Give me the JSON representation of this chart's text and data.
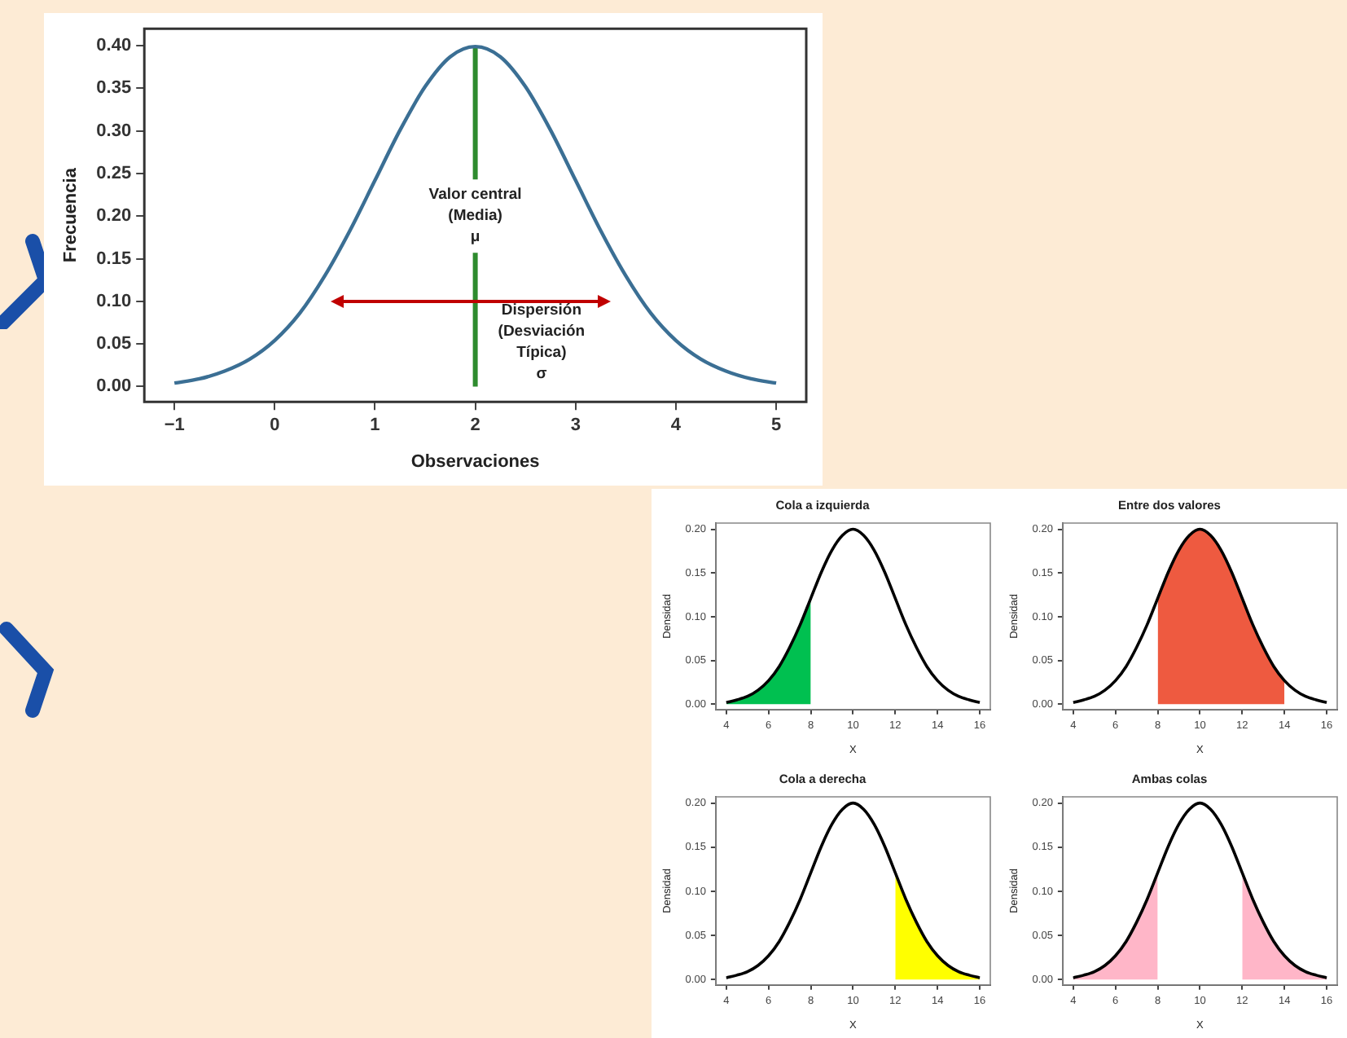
{
  "chart_data": [
    {
      "type": "line",
      "xlabel": "Observaciones",
      "ylabel": "Frecuencia",
      "xlim": [
        -1.3,
        5.3
      ],
      "ylim": [
        -0.018,
        0.42
      ],
      "xticks": [
        {
          "value": -1,
          "label": "−1"
        },
        0,
        1,
        2,
        3,
        4,
        5
      ],
      "yticks": [
        {
          "value": 0,
          "label": "0.00"
        },
        {
          "value": 0.05,
          "label": "0.05"
        },
        {
          "value": 0.1,
          "label": "0.10"
        },
        {
          "value": 0.15,
          "label": "0.15"
        },
        {
          "value": 0.2,
          "label": "0.20"
        },
        {
          "value": 0.25,
          "label": "0.25"
        },
        {
          "value": 0.3,
          "label": "0.30"
        },
        {
          "value": 0.35,
          "label": "0.35"
        },
        {
          "value": 0.4,
          "label": "0.40"
        }
      ],
      "grid": false,
      "legend": false,
      "marker": "none",
      "series": [
        {
          "type": "line",
          "color": "#3b6f94",
          "x": [
            -1,
            -0.75,
            -0.5,
            -0.25,
            0,
            0.25,
            0.5,
            0.75,
            1,
            1.25,
            1.5,
            1.75,
            2,
            2.25,
            2.5,
            2.75,
            3,
            3.25,
            3.5,
            3.75,
            4,
            4.25,
            4.5,
            4.75,
            5
          ],
          "values": [
            0.004,
            0.009,
            0.018,
            0.032,
            0.054,
            0.086,
            0.13,
            0.183,
            0.242,
            0.301,
            0.352,
            0.387,
            0.399,
            0.387,
            0.352,
            0.301,
            0.242,
            0.183,
            0.13,
            0.086,
            0.054,
            0.032,
            0.018,
            0.009,
            0.004
          ]
        }
      ],
      "ref_lines": [
        {
          "axis": "x",
          "value": 2,
          "color": "#2e8b2e"
        }
      ],
      "annotations": [
        {
          "text": "Valor central\n(Media)\nμ",
          "x": 2,
          "y": 0.2
        },
        "Dispersión\n(Desviación\nTípica)\nσ"
      ]
    },
    {
      "type": "line",
      "title": "Cola a izquierda",
      "xlabel": "X",
      "ylabel": "Densidad",
      "xlim": [
        3.5,
        16.5
      ],
      "ylim": [
        -0.006,
        0.207
      ],
      "xticks": [
        4,
        6,
        8,
        10,
        12,
        14,
        16
      ],
      "yticks": [
        {
          "value": 0,
          "label": "0.00"
        },
        {
          "value": 0.05,
          "label": "0.05"
        },
        {
          "value": 0.1,
          "label": "0.10"
        },
        {
          "value": 0.15,
          "label": "0.15"
        },
        {
          "value": 0.2,
          "label": "0.20"
        }
      ],
      "grid": false,
      "legend": false,
      "marker": "none",
      "series": [
        {
          "type": "area",
          "color": "#00c050",
          "x": [
            4,
            4.5,
            5,
            5.5,
            6,
            6.5,
            7,
            7.5,
            8
          ],
          "values": [
            0.002,
            0.005,
            0.009,
            0.016,
            0.027,
            0.043,
            0.065,
            0.091,
            0.121
          ]
        },
        {
          "type": "line",
          "color": "#000000",
          "x": [
            4,
            4.5,
            5,
            5.5,
            6,
            6.5,
            7,
            7.5,
            8,
            8.5,
            9,
            9.5,
            10,
            10.5,
            11,
            11.5,
            12,
            12.5,
            13,
            13.5,
            14,
            14.5,
            15,
            15.5,
            16
          ],
          "values": [
            0.002,
            0.005,
            0.009,
            0.016,
            0.027,
            0.043,
            0.065,
            0.091,
            0.121,
            0.151,
            0.176,
            0.193,
            0.2,
            0.193,
            0.176,
            0.151,
            0.121,
            0.091,
            0.065,
            0.043,
            0.027,
            0.016,
            0.009,
            0.005,
            0.002
          ]
        }
      ]
    },
    {
      "type": "line",
      "title": "Entre dos valores",
      "xlabel": "X",
      "ylabel": "Densidad",
      "xlim": [
        3.5,
        16.5
      ],
      "ylim": [
        -0.006,
        0.207
      ],
      "xticks": [
        4,
        6,
        8,
        10,
        12,
        14,
        16
      ],
      "yticks": [
        {
          "value": 0,
          "label": "0.00"
        },
        {
          "value": 0.05,
          "label": "0.05"
        },
        {
          "value": 0.1,
          "label": "0.10"
        },
        {
          "value": 0.15,
          "label": "0.15"
        },
        {
          "value": 0.2,
          "label": "0.20"
        }
      ],
      "grid": false,
      "legend": false,
      "marker": "none",
      "series": [
        {
          "type": "area",
          "color": "#ee5a40",
          "x": [
            8,
            8.5,
            9,
            9.5,
            10,
            10.5,
            11,
            11.5,
            12,
            12.5,
            13,
            13.5,
            14
          ],
          "values": [
            0.121,
            0.151,
            0.176,
            0.193,
            0.2,
            0.193,
            0.176,
            0.151,
            0.121,
            0.091,
            0.065,
            0.043,
            0.027
          ]
        },
        {
          "type": "line",
          "color": "#000000",
          "x": [
            4,
            4.5,
            5,
            5.5,
            6,
            6.5,
            7,
            7.5,
            8,
            8.5,
            9,
            9.5,
            10,
            10.5,
            11,
            11.5,
            12,
            12.5,
            13,
            13.5,
            14,
            14.5,
            15,
            15.5,
            16
          ],
          "values": [
            0.002,
            0.005,
            0.009,
            0.016,
            0.027,
            0.043,
            0.065,
            0.091,
            0.121,
            0.151,
            0.176,
            0.193,
            0.2,
            0.193,
            0.176,
            0.151,
            0.121,
            0.091,
            0.065,
            0.043,
            0.027,
            0.016,
            0.009,
            0.005,
            0.002
          ]
        }
      ]
    },
    {
      "type": "line",
      "title": "Cola a derecha",
      "xlabel": "X",
      "ylabel": "Densidad",
      "xlim": [
        3.5,
        16.5
      ],
      "ylim": [
        -0.006,
        0.207
      ],
      "xticks": [
        4,
        6,
        8,
        10,
        12,
        14,
        16
      ],
      "yticks": [
        {
          "value": 0,
          "label": "0.00"
        },
        {
          "value": 0.05,
          "label": "0.05"
        },
        {
          "value": 0.1,
          "label": "0.10"
        },
        {
          "value": 0.15,
          "label": "0.15"
        },
        {
          "value": 0.2,
          "label": "0.20"
        }
      ],
      "grid": false,
      "legend": false,
      "marker": "none",
      "series": [
        {
          "type": "area",
          "color": "#ffff00",
          "x": [
            12,
            12.5,
            13,
            13.5,
            14,
            14.5,
            15,
            15.5,
            16
          ],
          "values": [
            0.121,
            0.091,
            0.065,
            0.043,
            0.027,
            0.016,
            0.009,
            0.005,
            0.002
          ]
        },
        {
          "type": "line",
          "color": "#000000",
          "x": [
            4,
            4.5,
            5,
            5.5,
            6,
            6.5,
            7,
            7.5,
            8,
            8.5,
            9,
            9.5,
            10,
            10.5,
            11,
            11.5,
            12,
            12.5,
            13,
            13.5,
            14,
            14.5,
            15,
            15.5,
            16
          ],
          "values": [
            0.002,
            0.005,
            0.009,
            0.016,
            0.027,
            0.043,
            0.065,
            0.091,
            0.121,
            0.151,
            0.176,
            0.193,
            0.2,
            0.193,
            0.176,
            0.151,
            0.121,
            0.091,
            0.065,
            0.043,
            0.027,
            0.016,
            0.009,
            0.005,
            0.002
          ]
        }
      ]
    },
    {
      "type": "line",
      "title": "Ambas colas",
      "xlabel": "X",
      "ylabel": "Densidad",
      "xlim": [
        3.5,
        16.5
      ],
      "ylim": [
        -0.006,
        0.207
      ],
      "xticks": [
        4,
        6,
        8,
        10,
        12,
        14,
        16
      ],
      "yticks": [
        {
          "value": 0,
          "label": "0.00"
        },
        {
          "value": 0.05,
          "label": "0.05"
        },
        {
          "value": 0.1,
          "label": "0.10"
        },
        {
          "value": 0.15,
          "label": "0.15"
        },
        {
          "value": 0.2,
          "label": "0.20"
        }
      ],
      "grid": false,
      "legend": false,
      "marker": "none",
      "series": [
        {
          "type": "area",
          "color": "#ffb6c8",
          "x": [
            4,
            4.5,
            5,
            5.5,
            6,
            6.5,
            7,
            7.5,
            8
          ],
          "values": [
            0.002,
            0.005,
            0.009,
            0.016,
            0.027,
            0.043,
            0.065,
            0.091,
            0.121
          ]
        },
        {
          "type": "area",
          "color": "#ffb6c8",
          "x": [
            12,
            12.5,
            13,
            13.5,
            14,
            14.5,
            15,
            15.5,
            16
          ],
          "values": [
            0.121,
            0.091,
            0.065,
            0.043,
            0.027,
            0.016,
            0.009,
            0.005,
            0.002
          ]
        },
        {
          "type": "line",
          "color": "#000000",
          "x": [
            4,
            4.5,
            5,
            5.5,
            6,
            6.5,
            7,
            7.5,
            8,
            8.5,
            9,
            9.5,
            10,
            10.5,
            11,
            11.5,
            12,
            12.5,
            13,
            13.5,
            14,
            14.5,
            15,
            15.5,
            16
          ],
          "values": [
            0.002,
            0.005,
            0.009,
            0.016,
            0.027,
            0.043,
            0.065,
            0.091,
            0.121,
            0.151,
            0.176,
            0.193,
            0.2,
            0.193,
            0.176,
            0.151,
            0.121,
            0.091,
            0.065,
            0.043,
            0.027,
            0.016,
            0.009,
            0.005,
            0.002
          ]
        }
      ]
    }
  ]
}
